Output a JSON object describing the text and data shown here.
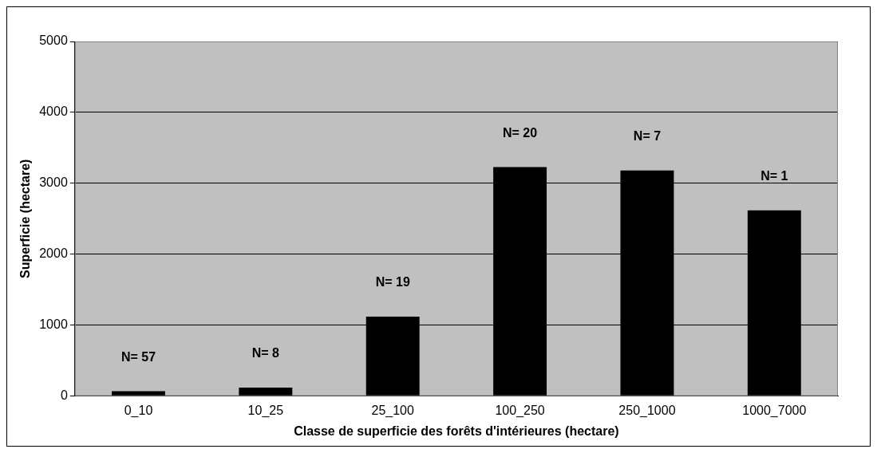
{
  "chart_data": {
    "type": "bar",
    "xlabel": "Classe de superficie des forêts d'intérieures (hectare)",
    "ylabel": "Superficie (hectare)",
    "categories": [
      "0_10",
      "10_25",
      "25_100",
      "100_250",
      "250_1000",
      "1000_7000"
    ],
    "values": [
      70,
      120,
      1120,
      3230,
      3180,
      2620
    ],
    "color": "#000000",
    "ylim": [
      0,
      5000
    ],
    "yticks": [
      0,
      1000,
      2000,
      3000,
      4000,
      5000
    ],
    "grid": "y",
    "legend": false,
    "annotations": [
      "N= 57",
      "N= 8",
      "N= 19",
      "N= 20",
      "N= 7",
      "N= 1"
    ]
  }
}
